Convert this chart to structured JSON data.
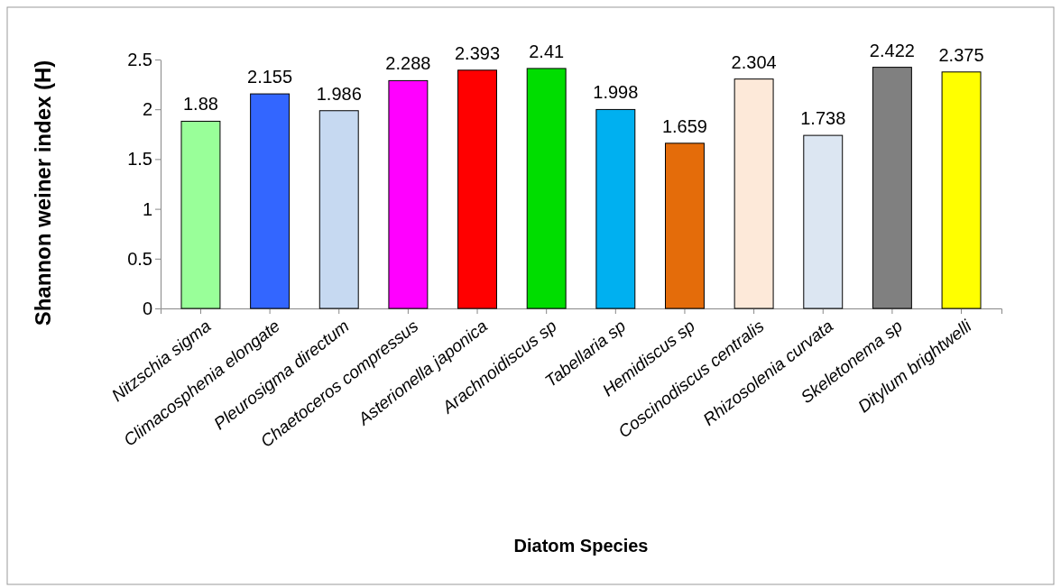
{
  "chart_data": {
    "type": "bar",
    "xlabel": "Diatom Species",
    "ylabel": "Shannon weiner index (H)",
    "categories": [
      "Nitzschia sigma",
      "Climacosphenia elongate",
      "Pleurosigma directum",
      "Chaetoceros compressus",
      "Asterionella japonica",
      "Arachnoidiscus sp",
      "Tabellaria sp",
      "Hemidiscus sp",
      "Coscinodiscus centralis",
      "Rhizosolenia curvata",
      "Skeletonema sp",
      "Ditylum brightwelli"
    ],
    "values": [
      1.88,
      2.155,
      1.986,
      2.288,
      2.393,
      2.41,
      1.998,
      1.659,
      2.304,
      1.738,
      2.422,
      2.375
    ],
    "colors": [
      "#99ff99",
      "#3366ff",
      "#c6d9f1",
      "#ff00ff",
      "#ff0000",
      "#00dd00",
      "#00b0f0",
      "#e46c0a",
      "#fde9d9",
      "#dce6f2",
      "#808080",
      "#ffff00"
    ],
    "ylim": [
      0,
      2.5
    ],
    "yticks": [
      0,
      0.5,
      1,
      1.5,
      2,
      2.5
    ],
    "data_labels": true
  }
}
